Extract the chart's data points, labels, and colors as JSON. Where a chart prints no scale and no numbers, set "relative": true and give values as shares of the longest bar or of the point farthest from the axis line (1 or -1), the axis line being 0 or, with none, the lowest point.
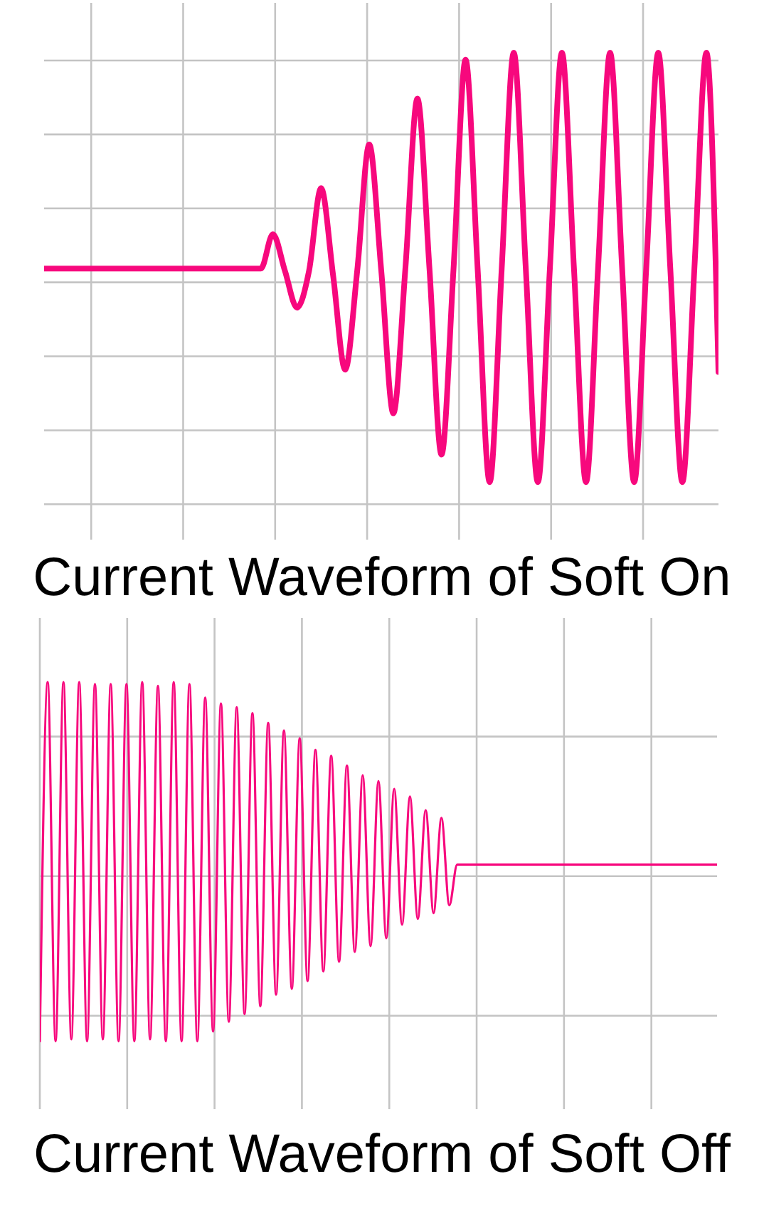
{
  "chart_data": [
    {
      "type": "line",
      "title": "Current Waveform of Soft On",
      "relative": true,
      "grid": true,
      "tick_labels": false,
      "marker": "none",
      "color": "#f7087d",
      "categories": [
        null,
        null,
        null,
        null,
        null,
        null,
        null,
        null,
        null,
        null,
        null,
        null,
        null,
        null,
        null,
        null,
        null,
        null,
        null,
        null,
        null,
        null,
        null,
        null,
        null,
        null,
        null,
        null,
        null,
        null,
        null,
        null,
        null,
        null,
        null,
        null,
        null,
        null,
        null,
        null,
        null,
        null,
        null,
        null,
        null,
        null,
        null,
        null,
        null,
        null,
        null,
        null,
        null,
        null,
        null,
        null,
        null
      ],
      "values": [
        0.06,
        0.06,
        0.06,
        0.06,
        0.06,
        0.06,
        0.06,
        0.06,
        0.06,
        0.06,
        0.06,
        0.06,
        0.06,
        0.06,
        0.06,
        0.06,
        0.06,
        0.06,
        0.06,
        0.21,
        0.05,
        -0.11,
        0.05,
        0.41,
        0.03,
        -0.38,
        0.05,
        0.6,
        0.05,
        -0.57,
        0.06,
        0.8,
        0.06,
        -0.75,
        0.06,
        0.97,
        0.06,
        -0.87,
        0.06,
        1,
        0.06,
        -0.87,
        0.06,
        1,
        0.06,
        -0.87,
        0.06,
        1,
        0.06,
        -0.87,
        0.06,
        1,
        0.06,
        -0.87,
        0.06,
        1,
        -0.39
      ]
    },
    {
      "type": "line",
      "title": "Current Waveform of Soft Off",
      "relative": true,
      "grid": true,
      "tick_labels": false,
      "marker": "none",
      "color": "#f7087d",
      "categories": [
        null,
        null,
        null,
        null,
        null,
        null,
        null,
        null,
        null,
        null,
        null,
        null,
        null,
        null,
        null,
        null,
        null,
        null,
        null,
        null,
        null,
        null,
        null,
        null,
        null,
        null,
        null,
        null,
        null,
        null,
        null,
        null,
        null,
        null,
        null,
        null,
        null,
        null,
        null,
        null,
        null,
        null,
        null,
        null,
        null,
        null,
        null,
        null,
        null,
        null,
        null,
        null,
        null,
        null,
        null,
        null,
        null,
        null,
        null,
        null,
        null,
        null,
        null,
        null,
        null,
        null,
        null,
        null,
        null,
        null,
        null,
        null,
        null,
        null,
        null,
        null,
        null,
        null,
        null,
        null,
        null,
        null,
        null,
        null,
        null,
        null,
        null
      ],
      "values": [
        -0.85,
        1,
        -0.85,
        1,
        -0.84,
        1,
        -0.85,
        0.99,
        -0.84,
        0.99,
        -0.85,
        0.99,
        -0.85,
        1,
        -0.84,
        0.98,
        -0.85,
        1,
        -0.85,
        0.99,
        -0.85,
        0.92,
        -0.8,
        0.89,
        -0.75,
        0.87,
        -0.71,
        0.84,
        -0.67,
        0.79,
        -0.61,
        0.75,
        -0.58,
        0.71,
        -0.54,
        0.65,
        -0.49,
        0.62,
        -0.44,
        0.57,
        -0.39,
        0.52,
        -0.36,
        0.49,
        -0.32,
        0.45,
        -0.25,
        0.41,
        -0.22,
        0.34,
        -0.19,
        0.3,
        -0.15,
        0.06,
        0.06,
        0.06,
        0.06,
        0.06,
        0.06,
        0.06,
        0.06,
        0.06,
        0.06,
        0.06,
        0.06,
        0.06,
        0.06,
        0.06,
        0.06,
        0.06,
        0.06,
        0.06,
        0.06,
        0.06,
        0.06,
        0.06,
        0.06,
        0.06,
        0.06,
        0.06,
        0.06,
        0.06,
        0.06,
        0.06,
        0.06,
        0.06,
        0.06
      ]
    }
  ]
}
